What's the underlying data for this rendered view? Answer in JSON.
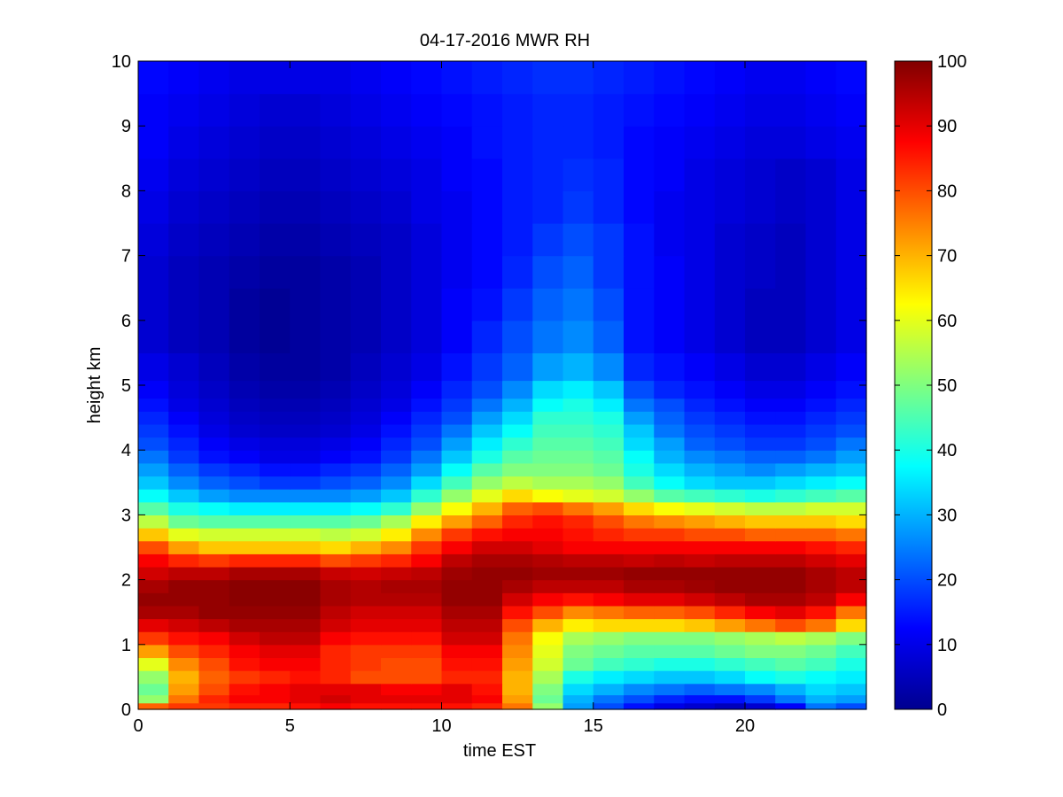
{
  "chart_data": {
    "type": "heatmap",
    "title": "04-17-2016 MWR RH",
    "xlabel": "time EST",
    "ylabel": "height km",
    "xlim": [
      0,
      24
    ],
    "ylim": [
      0,
      10
    ],
    "xticks": [
      "0",
      "5",
      "10",
      "15",
      "20"
    ],
    "yticks": [
      "0",
      "1",
      "2",
      "3",
      "4",
      "5",
      "6",
      "7",
      "8",
      "9",
      "10"
    ],
    "colorbar": {
      "range": [
        0,
        100
      ],
      "ticks": [
        "0",
        "10",
        "20",
        "30",
        "40",
        "50",
        "60",
        "70",
        "80",
        "90",
        "100"
      ],
      "colormap": "jet"
    },
    "x_hours": [
      0.5,
      1.5,
      2.5,
      3.5,
      4.5,
      5.5,
      6.5,
      7.5,
      8.5,
      9.5,
      10.5,
      11.5,
      12.5,
      13.5,
      14.5,
      15.5,
      16.5,
      17.5,
      18.5,
      19.5,
      20.5,
      21.5,
      22.5,
      23.5
    ],
    "heights_km": [
      0.05,
      0.15,
      0.3,
      0.5,
      0.7,
      0.9,
      1.1,
      1.3,
      1.5,
      1.7,
      1.9,
      2.1,
      2.3,
      2.5,
      2.7,
      2.9,
      3.1,
      3.3,
      3.5,
      3.7,
      3.9,
      4.1,
      4.3,
      4.5,
      4.7,
      4.9,
      5.25,
      5.75,
      6.25,
      6.75,
      7.25,
      7.75,
      8.25,
      8.75,
      9.25,
      9.75
    ],
    "rh": [
      [
        78,
        82,
        82,
        84,
        84,
        86,
        88,
        86,
        86,
        86,
        86,
        84,
        76,
        52,
        28,
        20,
        14,
        10,
        8,
        6,
        8,
        12,
        24,
        20
      ],
      [
        52,
        76,
        84,
        88,
        88,
        90,
        92,
        90,
        90,
        90,
        90,
        88,
        72,
        48,
        30,
        24,
        20,
        16,
        14,
        14,
        18,
        24,
        30,
        28
      ],
      [
        48,
        72,
        80,
        86,
        88,
        90,
        90,
        90,
        88,
        88,
        90,
        86,
        70,
        50,
        34,
        30,
        26,
        24,
        22,
        24,
        26,
        30,
        34,
        32
      ],
      [
        52,
        70,
        78,
        82,
        84,
        86,
        84,
        80,
        80,
        80,
        84,
        84,
        70,
        54,
        40,
        36,
        34,
        32,
        32,
        34,
        38,
        40,
        38,
        36
      ],
      [
        60,
        74,
        80,
        86,
        88,
        88,
        84,
        82,
        80,
        80,
        86,
        86,
        72,
        58,
        48,
        44,
        42,
        40,
        40,
        42,
        44,
        46,
        44,
        40
      ],
      [
        72,
        80,
        84,
        88,
        90,
        90,
        84,
        82,
        82,
        82,
        88,
        88,
        74,
        60,
        50,
        48,
        46,
        46,
        46,
        48,
        50,
        50,
        48,
        44
      ],
      [
        82,
        86,
        88,
        92,
        94,
        94,
        88,
        86,
        86,
        86,
        92,
        92,
        76,
        62,
        54,
        52,
        50,
        50,
        50,
        52,
        54,
        56,
        54,
        50
      ],
      [
        90,
        92,
        94,
        96,
        96,
        96,
        92,
        90,
        90,
        90,
        94,
        94,
        80,
        70,
        64,
        66,
        66,
        66,
        68,
        72,
        76,
        80,
        76,
        66
      ],
      [
        96,
        96,
        98,
        98,
        98,
        98,
        94,
        92,
        92,
        92,
        96,
        96,
        86,
        80,
        74,
        76,
        78,
        78,
        80,
        84,
        88,
        90,
        86,
        76
      ],
      [
        98,
        98,
        98,
        99,
        99,
        99,
        96,
        95,
        95,
        95,
        98,
        98,
        92,
        88,
        86,
        88,
        90,
        90,
        92,
        94,
        96,
        96,
        94,
        88
      ],
      [
        96,
        98,
        98,
        99,
        99,
        99,
        96,
        95,
        96,
        96,
        98,
        98,
        96,
        94,
        94,
        94,
        96,
        96,
        97,
        98,
        98,
        98,
        96,
        94
      ],
      [
        92,
        94,
        94,
        96,
        96,
        96,
        93,
        92,
        93,
        94,
        97,
        98,
        98,
        97,
        97,
        97,
        98,
        98,
        98,
        98,
        98,
        98,
        96,
        94
      ],
      [
        88,
        84,
        82,
        84,
        84,
        84,
        80,
        82,
        84,
        88,
        94,
        96,
        96,
        95,
        94,
        94,
        93,
        94,
        93,
        94,
        94,
        94,
        92,
        90
      ],
      [
        80,
        72,
        68,
        68,
        68,
        68,
        66,
        70,
        74,
        82,
        88,
        92,
        92,
        90,
        88,
        88,
        88,
        88,
        88,
        88,
        88,
        88,
        86,
        84
      ],
      [
        68,
        60,
        58,
        58,
        58,
        58,
        56,
        58,
        64,
        74,
        82,
        86,
        88,
        88,
        86,
        84,
        82,
        82,
        80,
        80,
        78,
        78,
        78,
        76
      ],
      [
        56,
        48,
        46,
        46,
        46,
        46,
        46,
        48,
        54,
        64,
        72,
        78,
        84,
        86,
        84,
        80,
        76,
        74,
        72,
        70,
        68,
        68,
        68,
        66
      ],
      [
        46,
        40,
        38,
        36,
        36,
        36,
        36,
        38,
        42,
        52,
        62,
        70,
        78,
        80,
        76,
        72,
        66,
        62,
        60,
        58,
        56,
        56,
        58,
        58
      ],
      [
        38,
        32,
        28,
        26,
        26,
        26,
        26,
        28,
        32,
        42,
        52,
        60,
        66,
        62,
        60,
        58,
        52,
        46,
        44,
        42,
        40,
        42,
        44,
        46
      ],
      [
        32,
        26,
        22,
        20,
        18,
        18,
        20,
        22,
        26,
        34,
        44,
        52,
        56,
        54,
        54,
        52,
        44,
        38,
        34,
        32,
        32,
        34,
        36,
        38
      ],
      [
        28,
        22,
        18,
        16,
        14,
        14,
        16,
        18,
        22,
        28,
        38,
        46,
        50,
        50,
        50,
        48,
        40,
        34,
        30,
        28,
        26,
        28,
        30,
        32
      ],
      [
        24,
        18,
        14,
        12,
        10,
        10,
        12,
        14,
        18,
        24,
        32,
        40,
        46,
        48,
        48,
        46,
        38,
        30,
        26,
        24,
        22,
        22,
        24,
        28
      ],
      [
        20,
        16,
        12,
        10,
        9,
        9,
        10,
        12,
        16,
        20,
        28,
        36,
        42,
        46,
        46,
        44,
        34,
        28,
        22,
        20,
        18,
        18,
        20,
        24
      ],
      [
        18,
        14,
        10,
        8,
        7,
        7,
        8,
        10,
        14,
        18,
        24,
        32,
        38,
        44,
        44,
        42,
        32,
        24,
        20,
        18,
        16,
        16,
        18,
        20
      ],
      [
        16,
        12,
        9,
        7,
        6,
        6,
        7,
        9,
        12,
        16,
        20,
        28,
        34,
        42,
        42,
        40,
        28,
        22,
        18,
        16,
        14,
        14,
        16,
        18
      ],
      [
        14,
        10,
        8,
        6,
        5,
        5,
        6,
        8,
        10,
        14,
        18,
        24,
        30,
        38,
        40,
        36,
        24,
        20,
        16,
        14,
        12,
        12,
        14,
        16
      ],
      [
        12,
        9,
        7,
        5,
        4,
        4,
        5,
        7,
        9,
        12,
        16,
        20,
        26,
        34,
        36,
        32,
        20,
        16,
        14,
        12,
        10,
        10,
        12,
        14
      ],
      [
        10,
        8,
        6,
        4,
        3,
        3,
        4,
        6,
        8,
        10,
        14,
        18,
        22,
        28,
        30,
        26,
        16,
        14,
        12,
        10,
        8,
        8,
        10,
        12
      ],
      [
        8,
        6,
        5,
        3,
        2,
        3,
        4,
        5,
        7,
        9,
        12,
        16,
        20,
        24,
        26,
        22,
        14,
        12,
        10,
        8,
        6,
        6,
        8,
        10
      ],
      [
        8,
        6,
        5,
        3,
        2,
        3,
        4,
        5,
        7,
        9,
        12,
        14,
        18,
        22,
        24,
        20,
        14,
        12,
        10,
        8,
        6,
        6,
        8,
        10
      ],
      [
        8,
        6,
        5,
        4,
        3,
        3,
        4,
        5,
        7,
        9,
        11,
        13,
        16,
        20,
        22,
        18,
        14,
        12,
        10,
        8,
        7,
        6,
        8,
        10
      ],
      [
        9,
        7,
        6,
        5,
        4,
        4,
        5,
        6,
        7,
        9,
        11,
        13,
        15,
        18,
        20,
        18,
        14,
        11,
        10,
        8,
        7,
        6,
        8,
        10
      ],
      [
        10,
        8,
        7,
        6,
        5,
        5,
        6,
        7,
        8,
        10,
        11,
        13,
        15,
        16,
        18,
        16,
        13,
        11,
        10,
        9,
        8,
        7,
        8,
        10
      ],
      [
        11,
        9,
        8,
        7,
        6,
        6,
        7,
        8,
        9,
        10,
        12,
        13,
        15,
        16,
        17,
        16,
        13,
        12,
        10,
        9,
        8,
        7,
        8,
        10
      ],
      [
        12,
        10,
        9,
        8,
        7,
        7,
        8,
        9,
        10,
        11,
        12,
        14,
        15,
        16,
        16,
        15,
        13,
        12,
        11,
        10,
        9,
        9,
        10,
        11
      ],
      [
        12,
        11,
        10,
        9,
        8,
        8,
        9,
        10,
        11,
        12,
        13,
        14,
        15,
        16,
        16,
        15,
        14,
        13,
        12,
        11,
        10,
        10,
        11,
        12
      ],
      [
        13,
        12,
        11,
        10,
        10,
        10,
        10,
        11,
        12,
        13,
        14,
        15,
        16,
        17,
        17,
        16,
        15,
        14,
        13,
        12,
        11,
        11,
        12,
        13
      ]
    ]
  }
}
